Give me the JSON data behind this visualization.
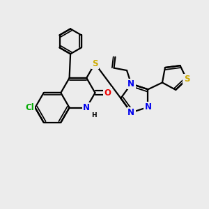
{
  "bg_color": "#ececec",
  "bond_color": "#000000",
  "bond_width": 1.6,
  "atom_colors": {
    "N": "#0000ee",
    "O": "#ee0000",
    "S": "#ccaa00",
    "Cl": "#00aa00",
    "C": "#000000",
    "H": "#000000"
  },
  "fs": 8.5,
  "fs2": 6.5
}
